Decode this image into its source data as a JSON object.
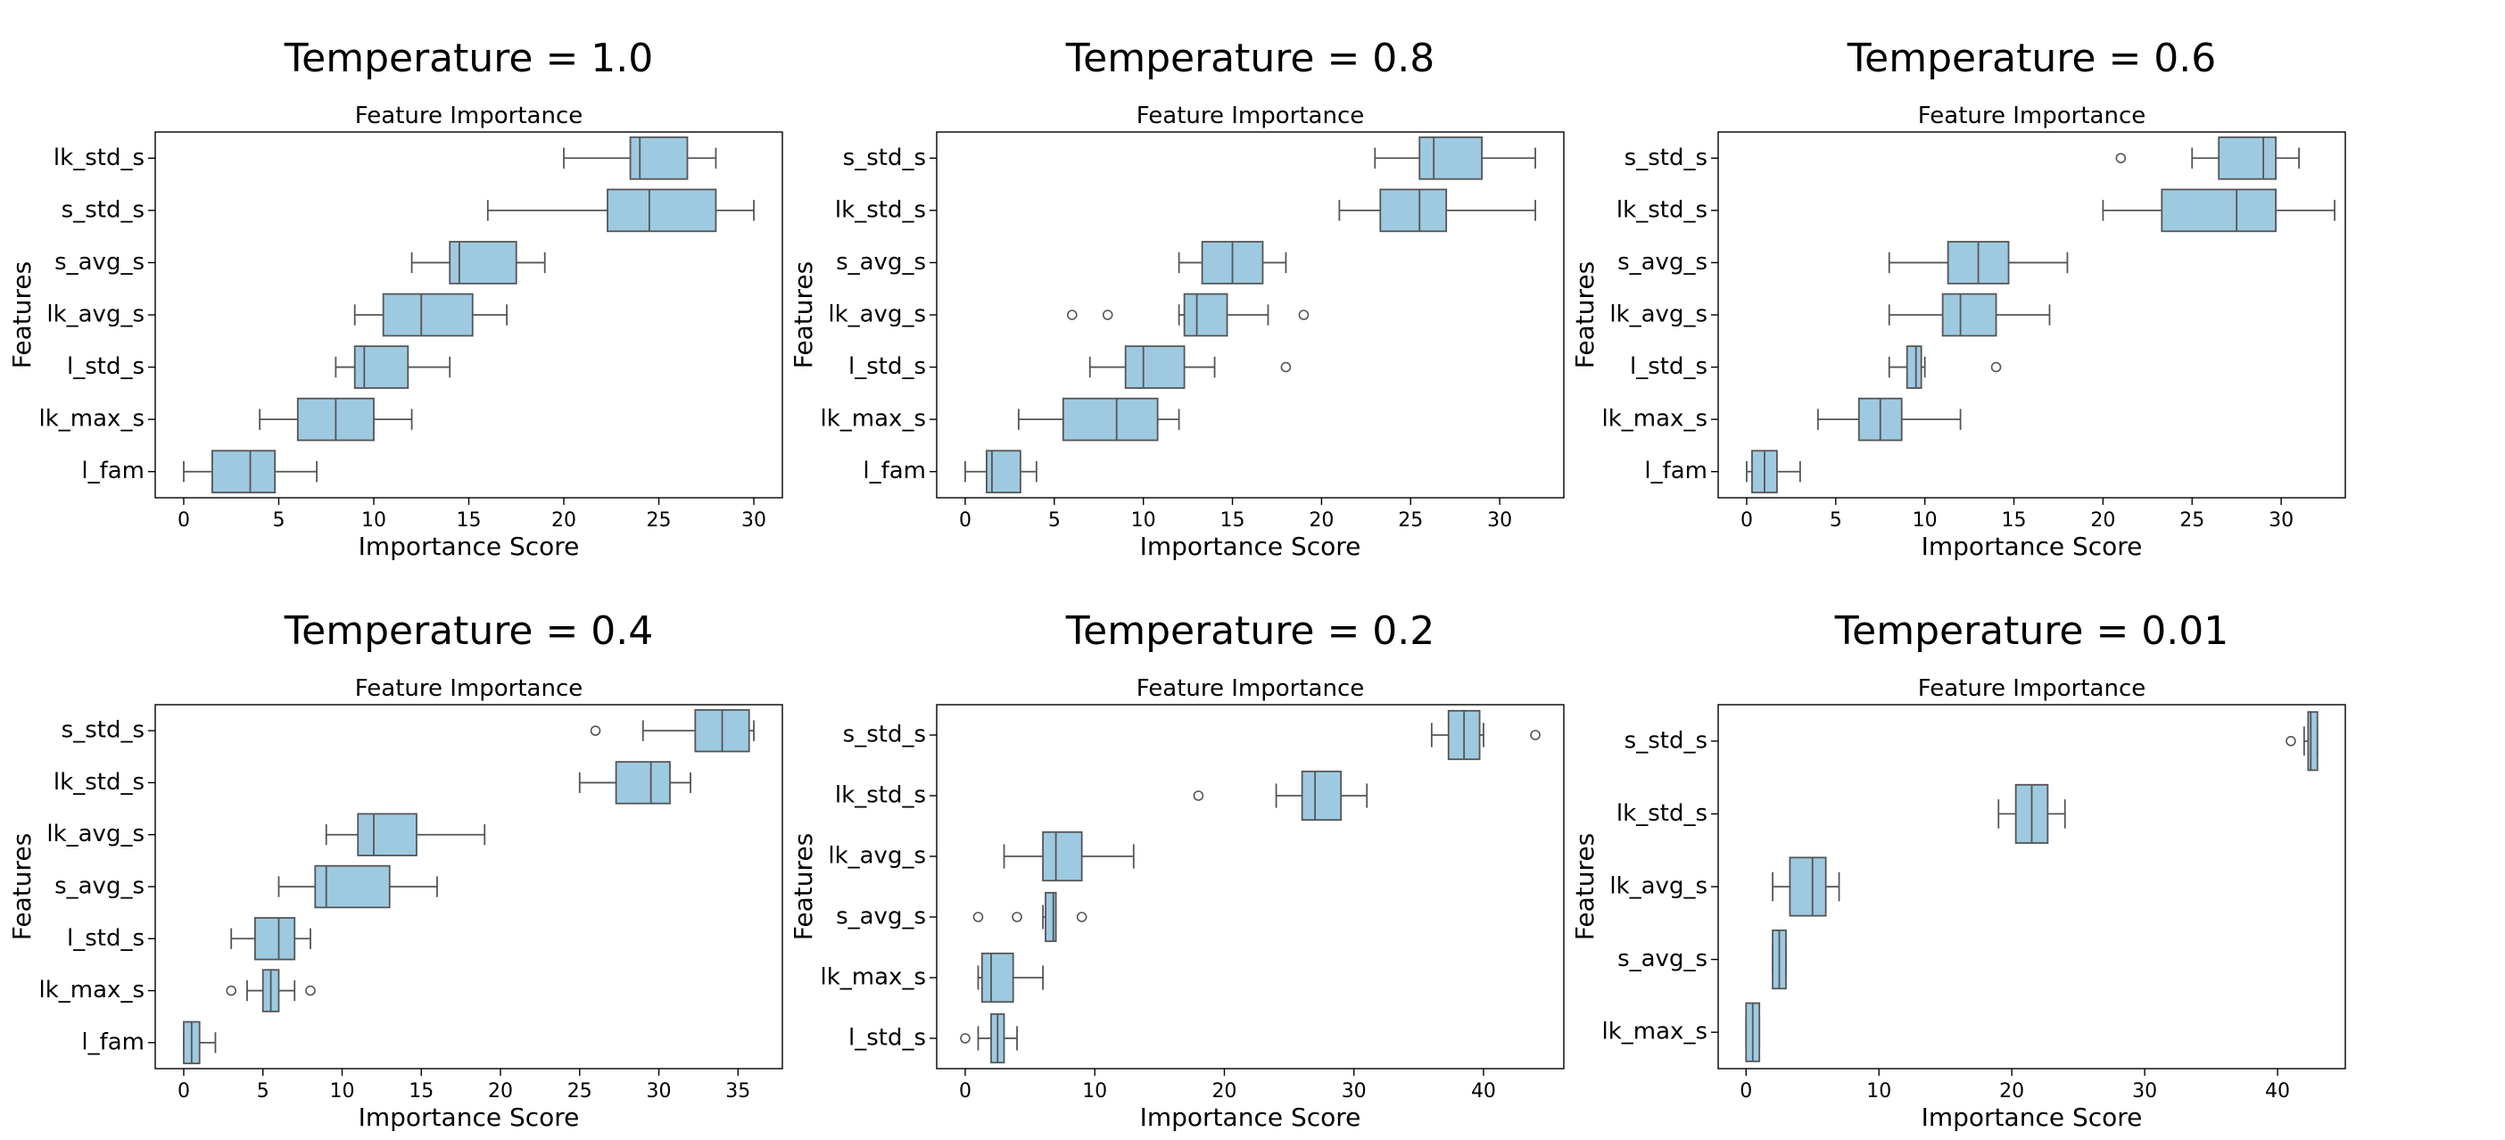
{
  "chart_data": [
    {
      "type": "box",
      "suptitle": "Temperature = 1.0",
      "title": "Feature Importance",
      "xlabel": "Importance Score",
      "ylabel": "Features",
      "xlim": [
        -1.5,
        31.5
      ],
      "xticks": [
        0,
        5,
        10,
        15,
        20,
        25,
        30
      ],
      "categories": [
        "lk_std_s",
        "s_std_s",
        "s_avg_s",
        "lk_avg_s",
        "l_std_s",
        "lk_max_s",
        "l_fam"
      ],
      "boxes": [
        {
          "min": 20,
          "q1": 23.5,
          "median": 24,
          "q3": 26.5,
          "max": 28,
          "fliers": []
        },
        {
          "min": 16,
          "q1": 22.3,
          "median": 24.5,
          "q3": 28,
          "max": 30,
          "fliers": []
        },
        {
          "min": 12,
          "q1": 14,
          "median": 14.5,
          "q3": 17.5,
          "max": 19,
          "fliers": []
        },
        {
          "min": 9,
          "q1": 10.5,
          "median": 12.5,
          "q3": 15.2,
          "max": 17,
          "fliers": []
        },
        {
          "min": 8,
          "q1": 9,
          "median": 9.5,
          "q3": 11.8,
          "max": 14,
          "fliers": []
        },
        {
          "min": 4,
          "q1": 6,
          "median": 8,
          "q3": 10,
          "max": 12,
          "fliers": []
        },
        {
          "min": 0,
          "q1": 1.5,
          "median": 3.5,
          "q3": 4.8,
          "max": 7,
          "fliers": []
        }
      ]
    },
    {
      "type": "box",
      "suptitle": "Temperature = 0.8",
      "title": "Feature Importance",
      "xlabel": "Importance Score",
      "ylabel": "Features",
      "xlim": [
        -1.6,
        33.6
      ],
      "xticks": [
        0,
        5,
        10,
        15,
        20,
        25,
        30
      ],
      "categories": [
        "s_std_s",
        "lk_std_s",
        "s_avg_s",
        "lk_avg_s",
        "l_std_s",
        "lk_max_s",
        "l_fam"
      ],
      "boxes": [
        {
          "min": 23,
          "q1": 25.5,
          "median": 26.3,
          "q3": 29,
          "max": 32,
          "fliers": []
        },
        {
          "min": 21,
          "q1": 23.3,
          "median": 25.5,
          "q3": 27,
          "max": 32,
          "fliers": []
        },
        {
          "min": 12,
          "q1": 13.3,
          "median": 15,
          "q3": 16.7,
          "max": 18,
          "fliers": []
        },
        {
          "min": 12,
          "q1": 12.3,
          "median": 13,
          "q3": 14.7,
          "max": 17,
          "fliers": [
            6,
            8,
            19
          ]
        },
        {
          "min": 7,
          "q1": 9,
          "median": 10,
          "q3": 12.3,
          "max": 14,
          "fliers": [
            18
          ]
        },
        {
          "min": 3,
          "q1": 5.5,
          "median": 8.5,
          "q3": 10.8,
          "max": 12,
          "fliers": []
        },
        {
          "min": 0,
          "q1": 1.2,
          "median": 1.5,
          "q3": 3.1,
          "max": 4,
          "fliers": []
        }
      ]
    },
    {
      "type": "box",
      "suptitle": "Temperature = 0.6",
      "title": "Feature Importance",
      "xlabel": "Importance Score",
      "ylabel": "Features",
      "xlim": [
        -1.6,
        33.6
      ],
      "xticks": [
        0,
        5,
        10,
        15,
        20,
        25,
        30
      ],
      "categories": [
        "s_std_s",
        "lk_std_s",
        "s_avg_s",
        "lk_avg_s",
        "l_std_s",
        "lk_max_s",
        "l_fam"
      ],
      "boxes": [
        {
          "min": 25,
          "q1": 26.5,
          "median": 29,
          "q3": 29.7,
          "max": 31,
          "fliers": [
            21
          ]
        },
        {
          "min": 20,
          "q1": 23.3,
          "median": 27.5,
          "q3": 29.7,
          "max": 33,
          "fliers": []
        },
        {
          "min": 8,
          "q1": 11.3,
          "median": 13,
          "q3": 14.7,
          "max": 18,
          "fliers": []
        },
        {
          "min": 8,
          "q1": 11,
          "median": 12,
          "q3": 14,
          "max": 17,
          "fliers": []
        },
        {
          "min": 8,
          "q1": 9,
          "median": 9.5,
          "q3": 9.8,
          "max": 10,
          "fliers": [
            14
          ]
        },
        {
          "min": 4,
          "q1": 6.3,
          "median": 7.5,
          "q3": 8.7,
          "max": 12,
          "fliers": []
        },
        {
          "min": 0,
          "q1": 0.3,
          "median": 1,
          "q3": 1.7,
          "max": 3,
          "fliers": []
        }
      ]
    },
    {
      "type": "box",
      "suptitle": "Temperature = 0.4",
      "title": "Feature Importance",
      "xlabel": "Importance Score",
      "ylabel": "Features",
      "xlim": [
        -1.8,
        37.8
      ],
      "xticks": [
        0,
        5,
        10,
        15,
        20,
        25,
        30,
        35
      ],
      "categories": [
        "s_std_s",
        "lk_std_s",
        "lk_avg_s",
        "s_avg_s",
        "l_std_s",
        "lk_max_s",
        "l_fam"
      ],
      "boxes": [
        {
          "min": 29,
          "q1": 32.3,
          "median": 34,
          "q3": 35.7,
          "max": 36,
          "fliers": [
            26
          ]
        },
        {
          "min": 25,
          "q1": 27.3,
          "median": 29.5,
          "q3": 30.7,
          "max": 32,
          "fliers": []
        },
        {
          "min": 9,
          "q1": 11,
          "median": 12,
          "q3": 14.7,
          "max": 19,
          "fliers": []
        },
        {
          "min": 6,
          "q1": 8.3,
          "median": 9,
          "q3": 13,
          "max": 16,
          "fliers": []
        },
        {
          "min": 3,
          "q1": 4.5,
          "median": 6,
          "q3": 7,
          "max": 8,
          "fliers": []
        },
        {
          "min": 4,
          "q1": 5,
          "median": 5.5,
          "q3": 6,
          "max": 7,
          "fliers": [
            3,
            8
          ]
        },
        {
          "min": 0,
          "q1": 0,
          "median": 0.5,
          "q3": 1,
          "max": 2,
          "fliers": []
        }
      ]
    },
    {
      "type": "box",
      "suptitle": "Temperature = 0.2",
      "title": "Feature Importance",
      "xlabel": "Importance Score",
      "ylabel": "Features",
      "xlim": [
        -2.2,
        46.2
      ],
      "xticks": [
        0,
        10,
        20,
        30,
        40
      ],
      "categories": [
        "s_std_s",
        "lk_std_s",
        "lk_avg_s",
        "s_avg_s",
        "lk_max_s",
        "l_std_s"
      ],
      "boxes": [
        {
          "min": 36,
          "q1": 37.3,
          "median": 38.5,
          "q3": 39.7,
          "max": 40,
          "fliers": [
            44
          ]
        },
        {
          "min": 24,
          "q1": 26,
          "median": 27,
          "q3": 29,
          "max": 31,
          "fliers": [
            18
          ]
        },
        {
          "min": 3,
          "q1": 6,
          "median": 7,
          "q3": 9,
          "max": 13,
          "fliers": []
        },
        {
          "min": 6,
          "q1": 6.2,
          "median": 6.8,
          "q3": 7,
          "max": 7,
          "fliers": [
            1,
            4,
            9
          ]
        },
        {
          "min": 1,
          "q1": 1.3,
          "median": 2,
          "q3": 3.7,
          "max": 6,
          "fliers": []
        },
        {
          "min": 1,
          "q1": 2,
          "median": 2.5,
          "q3": 3,
          "max": 4,
          "fliers": [
            0
          ]
        }
      ]
    },
    {
      "type": "box",
      "suptitle": "Temperature = 0.01",
      "title": "Feature Importance",
      "xlabel": "Importance Score",
      "ylabel": "Features",
      "xlim": [
        -2.1,
        45.1
      ],
      "xticks": [
        0,
        10,
        20,
        30,
        40
      ],
      "categories": [
        "s_std_s",
        "lk_std_s",
        "lk_avg_s",
        "s_avg_s",
        "lk_max_s"
      ],
      "boxes": [
        {
          "min": 42,
          "q1": 42.3,
          "median": 42.5,
          "q3": 43,
          "max": 43,
          "fliers": [
            41
          ]
        },
        {
          "min": 19,
          "q1": 20.3,
          "median": 21.5,
          "q3": 22.7,
          "max": 24,
          "fliers": []
        },
        {
          "min": 2,
          "q1": 3.3,
          "median": 5,
          "q3": 6,
          "max": 7,
          "fliers": []
        },
        {
          "min": 2,
          "q1": 2,
          "median": 2.5,
          "q3": 3,
          "max": 3,
          "fliers": []
        },
        {
          "min": 0,
          "q1": 0,
          "median": 0.5,
          "q3": 1,
          "max": 1,
          "fliers": []
        }
      ]
    }
  ]
}
